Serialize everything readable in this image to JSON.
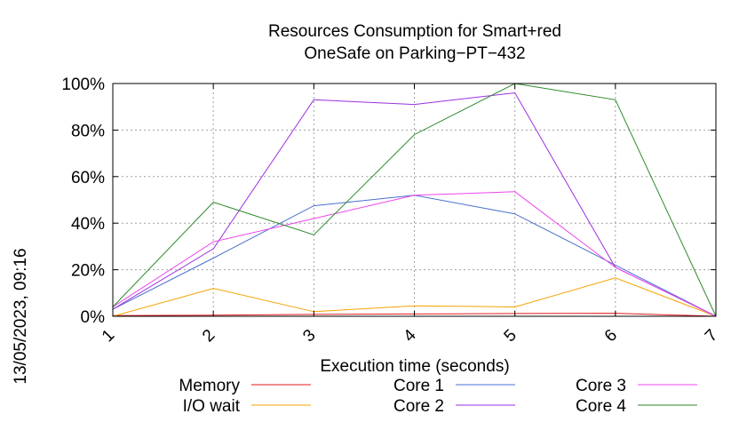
{
  "chart_data": {
    "type": "line",
    "title_lines": [
      "Resources Consumption for Smart+red",
      "OneSafe on Parking−PT−432"
    ],
    "xlabel": "Execution time (seconds)",
    "ylabel": "",
    "x": [
      1,
      2,
      3,
      4,
      5,
      6,
      7
    ],
    "xlim": [
      1,
      7
    ],
    "ylim": [
      0,
      100
    ],
    "x_tick_labels": [
      "1",
      "2",
      "3",
      "4",
      "5",
      "6",
      "7"
    ],
    "y_ticks": [
      0,
      20,
      40,
      60,
      80,
      100
    ],
    "y_tick_labels": [
      "0%",
      "20%",
      "40%",
      "60%",
      "80%",
      "100%"
    ],
    "grid": true,
    "legend_position": "bottom",
    "series": [
      {
        "name": "Memory",
        "color": "#e41a1c",
        "values": [
          0.3,
          0.5,
          0.8,
          1.0,
          1.2,
          1.3,
          0
        ]
      },
      {
        "name": "I/O wait",
        "color": "#f5a300",
        "values": [
          0,
          12,
          2,
          4.5,
          4,
          16.5,
          0
        ]
      },
      {
        "name": "Core 1",
        "color": "#4a6fd0",
        "values": [
          3,
          25,
          47.5,
          52,
          44,
          22,
          0
        ]
      },
      {
        "name": "Core 2",
        "color": "#9b30e0",
        "values": [
          3,
          29,
          93,
          91,
          96,
          21,
          0
        ]
      },
      {
        "name": "Core 3",
        "color": "#ee44ee",
        "values": [
          4,
          32,
          42,
          52,
          53.5,
          21,
          0
        ]
      },
      {
        "name": "Core 4",
        "color": "#2e8b2e",
        "values": [
          4,
          49,
          35,
          78,
          100,
          93,
          0
        ]
      }
    ]
  },
  "timestamp": "13/05/2023, 09:16"
}
